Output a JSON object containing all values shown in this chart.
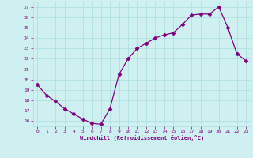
{
  "x": [
    0,
    1,
    2,
    3,
    4,
    5,
    6,
    7,
    8,
    9,
    10,
    11,
    12,
    13,
    14,
    15,
    16,
    17,
    18,
    19,
    20,
    21,
    22,
    23
  ],
  "y": [
    19.5,
    18.5,
    17.9,
    17.2,
    16.7,
    16.2,
    15.8,
    15.7,
    17.2,
    20.5,
    22.0,
    23.0,
    23.5,
    24.0,
    24.3,
    24.5,
    25.3,
    26.2,
    26.3,
    26.3,
    27.0,
    25.0,
    22.5,
    21.8
  ],
  "line_color": "#800080",
  "marker": "D",
  "marker_size": 2.5,
  "bg_color": "#cff0f0",
  "grid_color": "#aadddd",
  "xlabel": "Windchill (Refroidissement éolien,°C)",
  "xlabel_color": "#800080",
  "tick_color": "#800080",
  "ylim": [
    15.5,
    27.5
  ],
  "xlim": [
    -0.5,
    23.5
  ],
  "yticks": [
    16,
    17,
    18,
    19,
    20,
    21,
    22,
    23,
    24,
    25,
    26,
    27
  ],
  "xticks": [
    0,
    1,
    2,
    3,
    4,
    5,
    6,
    7,
    8,
    9,
    10,
    11,
    12,
    13,
    14,
    15,
    16,
    17,
    18,
    19,
    20,
    21,
    22,
    23
  ]
}
